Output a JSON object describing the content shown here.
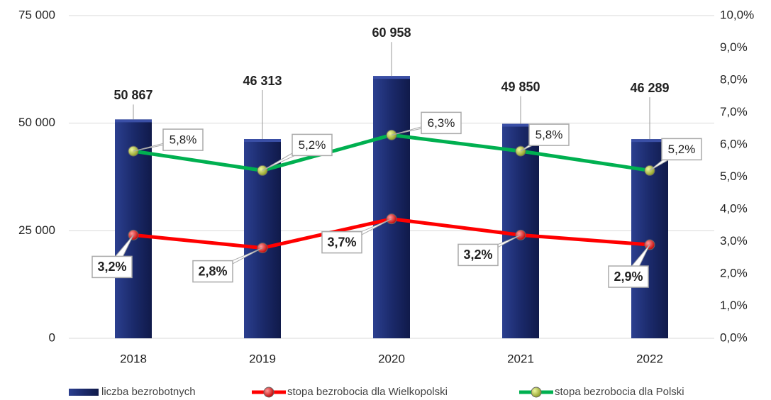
{
  "chart_data": {
    "type": "bar",
    "categories": [
      "2018",
      "2019",
      "2020",
      "2021",
      "2022"
    ],
    "series": [
      {
        "name": "liczba bezrobotnych",
        "type": "bar",
        "color": "#1b2a6b",
        "values": [
          50867,
          46313,
          60958,
          49850,
          46289
        ],
        "value_labels": [
          "50 867",
          "46 313",
          "60 958",
          "49 850",
          "46 289"
        ]
      },
      {
        "name": "stopa bezrobocia dla Wielkopolski",
        "type": "line",
        "axis": "y2",
        "color": "#ff0000",
        "values": [
          3.2,
          2.8,
          3.7,
          3.2,
          2.9
        ],
        "value_labels": [
          "3,2%",
          "2,8%",
          "3,7%",
          "3,2%",
          "2,9%"
        ]
      },
      {
        "name": "stopa bezrobocia dla Polski",
        "type": "line",
        "axis": "y2",
        "color": "#00b050",
        "values": [
          5.8,
          5.2,
          6.3,
          5.8,
          5.2
        ],
        "value_labels": [
          "5,8%",
          "5,2%",
          "6,3%",
          "5,8%",
          "5,2%"
        ]
      }
    ],
    "ylim": [
      0,
      75000
    ],
    "yticks": [
      0,
      {
        "value": 25000,
        "label": "25 000"
      },
      {
        "value": 50000,
        "label": "50 000"
      },
      {
        "value": 75000,
        "label": "75 000"
      }
    ],
    "y2lim": [
      0,
      10
    ],
    "y2ticks": [
      {
        "value": 0,
        "label": "0,0%"
      },
      {
        "value": 1,
        "label": "1,0%"
      },
      {
        "value": 2,
        "label": "2,0%"
      },
      {
        "value": 3,
        "label": "3,0%"
      },
      {
        "value": 4,
        "label": "4,0%"
      },
      {
        "value": 5,
        "label": "5,0%"
      },
      {
        "value": 6,
        "label": "6,0%"
      },
      {
        "value": 7,
        "label": "7,0%"
      },
      {
        "value": 8,
        "label": "8,0%"
      },
      {
        "value": 9,
        "label": "9,0%"
      },
      {
        "value": 10,
        "label": "10,0%"
      }
    ],
    "grid": true,
    "legend": "bottom"
  }
}
